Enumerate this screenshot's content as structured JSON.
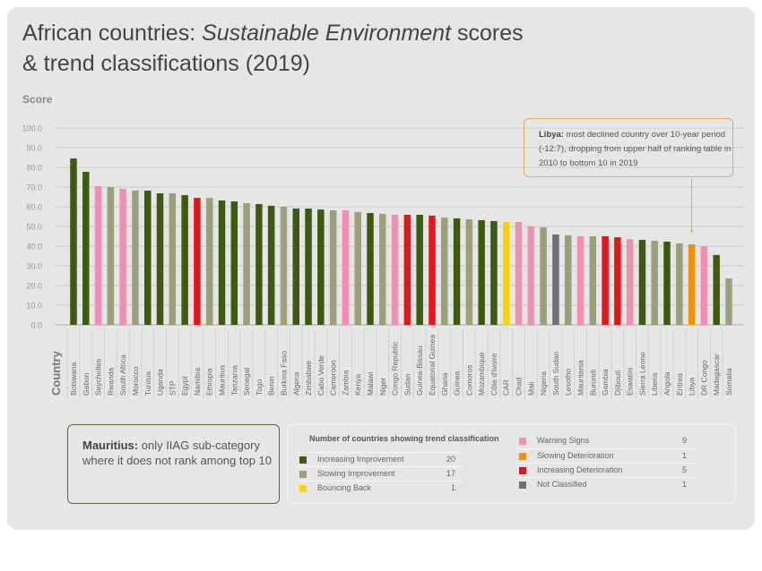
{
  "title": {
    "line1_a": "African countries: ",
    "line1_em": "Sustainable Environment",
    "line1_b": " scores",
    "line2": "& trend classifications (2019)"
  },
  "colors": {
    "Increasing Improvement": "#3d5a12",
    "Slowing Improvement": "#9aa07a",
    "Bouncing Back": "#ffd400",
    "Warning Signs": "#f08fb0",
    "Slowing Deterioration": "#f39200",
    "Increasing Deterioration": "#e3171b",
    "Not Classified": "#707070"
  },
  "chart_data": {
    "type": "bar",
    "ylabel": "Score",
    "xlabel": "Country",
    "ylim": [
      0,
      100
    ],
    "yticks": [
      "0.0",
      "10.0",
      "20.0",
      "30.0",
      "40.0",
      "50.0",
      "60.0",
      "70.0",
      "80.0",
      "90.0",
      "100.0"
    ],
    "grid": true,
    "categories": [
      "Botswana",
      "Gabon",
      "Seychelles",
      "Rwanda",
      "South Africa",
      "Morocco",
      "Tunisia",
      "Uganda",
      "STP",
      "Egypt",
      "Namibia",
      "Ethiopia",
      "Mauritius",
      "Tanzania",
      "Senegal",
      "Togo",
      "Benin",
      "Burkina Faso",
      "Algeria",
      "Zimbabwe",
      "Cabo Verde",
      "Cameroon",
      "Zambia",
      "Kenya",
      "Malawi",
      "Niger",
      "Congo Republic",
      "Sudan",
      "Guinea-Bissau",
      "Equatorial Guinea",
      "Ghana",
      "Guinea",
      "Comoros",
      "Mozambique",
      "Côte d'Ivoire",
      "CAR",
      "Chad",
      "Mali",
      "Nigeria",
      "South Sudan",
      "Lesotho",
      "Mauritania",
      "Burundi",
      "Gambia",
      "Djibouti",
      "Eswatini",
      "Sierra Leone",
      "Liberia",
      "Angola",
      "Eritrea",
      "Libya",
      "DR Congo",
      "Madagascar",
      "Somalia"
    ],
    "values": [
      84.5,
      77.7,
      70.5,
      70.0,
      69.1,
      68.2,
      68.2,
      66.8,
      66.8,
      65.9,
      64.5,
      64.5,
      63.2,
      62.7,
      61.8,
      61.4,
      60.5,
      60.0,
      59.1,
      59.1,
      58.6,
      58.2,
      58.2,
      57.3,
      56.8,
      56.4,
      55.9,
      55.9,
      55.9,
      55.5,
      54.5,
      54.1,
      53.6,
      53.2,
      52.7,
      52.3,
      52.3,
      50.0,
      49.5,
      45.9,
      45.5,
      45.0,
      45.0,
      45.0,
      44.5,
      43.6,
      43.2,
      42.7,
      42.3,
      41.4,
      40.9,
      40.0,
      35.5,
      23.6
    ],
    "classification": [
      "Increasing Improvement",
      "Increasing Improvement",
      "Warning Signs",
      "Slowing Improvement",
      "Warning Signs",
      "Slowing Improvement",
      "Increasing Improvement",
      "Increasing Improvement",
      "Slowing Improvement",
      "Increasing Improvement",
      "Increasing Deterioration",
      "Slowing Improvement",
      "Increasing Improvement",
      "Increasing Improvement",
      "Slowing Improvement",
      "Increasing Improvement",
      "Increasing Improvement",
      "Slowing Improvement",
      "Increasing Improvement",
      "Increasing Improvement",
      "Increasing Improvement",
      "Slowing Improvement",
      "Warning Signs",
      "Slowing Improvement",
      "Increasing Improvement",
      "Slowing Improvement",
      "Warning Signs",
      "Increasing Deterioration",
      "Increasing Improvement",
      "Increasing Deterioration",
      "Slowing Improvement",
      "Increasing Improvement",
      "Slowing Improvement",
      "Increasing Improvement",
      "Increasing Improvement",
      "Bouncing Back",
      "Warning Signs",
      "Warning Signs",
      "Slowing Improvement",
      "Not Classified",
      "Slowing Improvement",
      "Warning Signs",
      "Slowing Improvement",
      "Increasing Deterioration",
      "Increasing Deterioration",
      "Warning Signs",
      "Increasing Improvement",
      "Slowing Improvement",
      "Increasing Improvement",
      "Slowing Improvement",
      "Slowing Deterioration",
      "Warning Signs",
      "Increasing Improvement",
      "Slowing Improvement"
    ]
  },
  "callout": {
    "bold": "Libya:",
    "text": " most declined country over 10-year period (-12.7), dropping from upper half of ranking table in 2010 to bottom 10 in 2019"
  },
  "note": {
    "bold": "Mauritius:",
    "text": " only IIAG sub-category where it does not rank among top 10"
  },
  "legend": {
    "title": "Number of countries showing trend classification",
    "items": [
      {
        "label": "Increasing Improvement",
        "count": "20"
      },
      {
        "label": "Slowing Improvement",
        "count": "17"
      },
      {
        "label": "Bouncing Back",
        "count": "1"
      },
      {
        "label": "Warning Signs",
        "count": "9"
      },
      {
        "label": "Slowing Deterioration",
        "count": "1"
      },
      {
        "label": "Increasing Deterioration",
        "count": "5"
      },
      {
        "label": "Not Classified",
        "count": "1"
      }
    ]
  }
}
